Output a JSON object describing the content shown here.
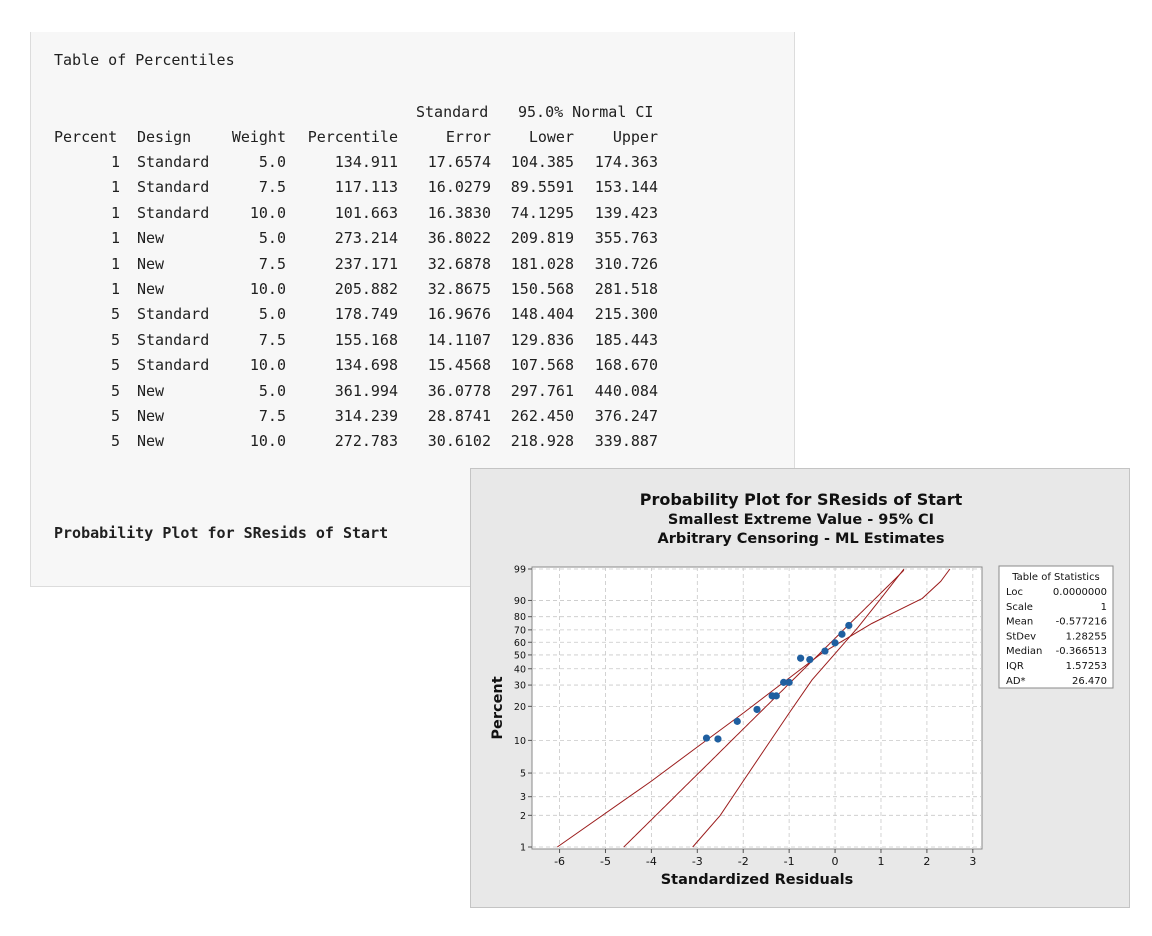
{
  "session": {
    "table_title": "Table of Percentiles",
    "header_top": {
      "standard": "Standard",
      "ci": "95.0% Normal CI"
    },
    "columns": [
      "Percent",
      "Design",
      "Weight",
      "Percentile",
      "Error",
      "Lower",
      "Upper"
    ],
    "rows": [
      [
        "1",
        "Standard",
        "5.0",
        "134.911",
        "17.6574",
        "104.385",
        "174.363"
      ],
      [
        "1",
        "Standard",
        "7.5",
        "117.113",
        "16.0279",
        "89.5591",
        "153.144"
      ],
      [
        "1",
        "Standard",
        "10.0",
        "101.663",
        "16.3830",
        "74.1295",
        "139.423"
      ],
      [
        "1",
        "New",
        "5.0",
        "273.214",
        "36.8022",
        "209.819",
        "355.763"
      ],
      [
        "1",
        "New",
        "7.5",
        "237.171",
        "32.6878",
        "181.028",
        "310.726"
      ],
      [
        "1",
        "New",
        "10.0",
        "205.882",
        "32.8675",
        "150.568",
        "281.518"
      ],
      [
        "5",
        "Standard",
        "5.0",
        "178.749",
        "16.9676",
        "148.404",
        "215.300"
      ],
      [
        "5",
        "Standard",
        "7.5",
        "155.168",
        "14.1107",
        "129.836",
        "185.443"
      ],
      [
        "5",
        "Standard",
        "10.0",
        "134.698",
        "15.4568",
        "107.568",
        "168.670"
      ],
      [
        "5",
        "New",
        "5.0",
        "361.994",
        "36.0778",
        "297.761",
        "440.084"
      ],
      [
        "5",
        "New",
        "7.5",
        "314.239",
        "28.8741",
        "262.450",
        "376.247"
      ],
      [
        "5",
        "New",
        "10.0",
        "272.783",
        "30.6102",
        "218.928",
        "339.887"
      ]
    ],
    "section_title": "Probability Plot for SResids of Start"
  },
  "graph": {
    "title_lines": [
      "Probability Plot for SResids of Start",
      "Smallest Extreme Value - 95% CI",
      "Arbitrary Censoring - ML Estimates"
    ],
    "stats_title": "Table of Statistics",
    "stats": [
      {
        "label": "Loc",
        "value": "0.0000000"
      },
      {
        "label": "Scale",
        "value": "1"
      },
      {
        "label": "Mean",
        "value": "-0.577216"
      },
      {
        "label": "StDev",
        "value": "1.28255"
      },
      {
        "label": "Median",
        "value": "-0.366513"
      },
      {
        "label": "IQR",
        "value": "1.57253"
      },
      {
        "label": "AD*",
        "value": "26.470"
      }
    ]
  },
  "chart_data": {
    "type": "scatter",
    "title": "Probability Plot for SResids of Start",
    "xlabel": "Standardized Residuals",
    "ylabel": "Percent",
    "x_ticks": [
      -6,
      -5,
      -4,
      -3,
      -2,
      -1,
      0,
      1,
      2,
      3
    ],
    "y_ticks": [
      1,
      2,
      3,
      5,
      10,
      20,
      30,
      40,
      50,
      60,
      70,
      80,
      90,
      99
    ],
    "xlim": [
      -6.6,
      3.2
    ],
    "ylim": [
      1,
      99
    ],
    "y_scale": "smallest-extreme-value probability",
    "grid": true,
    "points": [
      {
        "x": -2.8,
        "y": 10.5
      },
      {
        "x": -2.55,
        "y": 10.3
      },
      {
        "x": -2.13,
        "y": 14.8
      },
      {
        "x": -1.7,
        "y": 18.8
      },
      {
        "x": -1.37,
        "y": 24.5
      },
      {
        "x": -1.28,
        "y": 24.5
      },
      {
        "x": -1.12,
        "y": 31.5
      },
      {
        "x": -1.0,
        "y": 31.5
      },
      {
        "x": -0.75,
        "y": 47.5
      },
      {
        "x": -0.55,
        "y": 46.5
      },
      {
        "x": -0.22,
        "y": 53.0
      },
      {
        "x": 0.0,
        "y": 59.5
      },
      {
        "x": 0.15,
        "y": 66.5
      },
      {
        "x": 0.3,
        "y": 73.5
      }
    ],
    "fit_line": {
      "loc": 0,
      "scale": 1
    },
    "ci_bands": {
      "lower": [
        [
          -6.05,
          1
        ],
        [
          -4.0,
          4.2
        ],
        [
          -3.0,
          8.7
        ],
        [
          -2.0,
          17.5
        ],
        [
          -1.0,
          34.0
        ],
        [
          -0.3,
          51.0
        ],
        [
          0.8,
          75.0
        ],
        [
          1.9,
          91.0
        ],
        [
          2.3,
          97.0
        ],
        [
          2.5,
          99
        ]
      ],
      "upper": [
        [
          -3.1,
          1
        ],
        [
          -2.5,
          2.0
        ],
        [
          -2.0,
          4.2
        ],
        [
          -1.5,
          8.7
        ],
        [
          -1.0,
          17.5
        ],
        [
          -0.5,
          33.0
        ],
        [
          0.0,
          51.0
        ],
        [
          0.5,
          72.0
        ],
        [
          1.0,
          91.0
        ],
        [
          1.5,
          99
        ]
      ]
    },
    "colors": {
      "points": "#1f5fa0",
      "lines": "#9b1c1c",
      "plot_bg": "#ffffff",
      "grid": "#c8c8c8"
    }
  }
}
